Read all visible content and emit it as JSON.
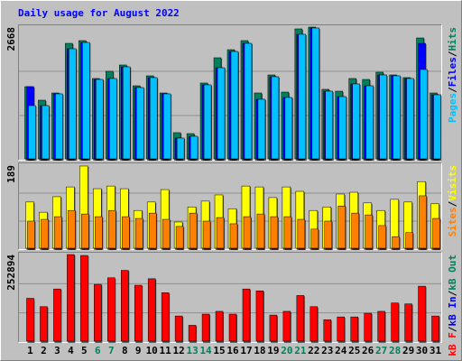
{
  "title": "Daily usage for August 2022",
  "legend_separator": "/",
  "highlight_categories": [
    "6",
    "7",
    "13",
    "14",
    "20",
    "21",
    "27",
    "28"
  ],
  "highlight_color": "#00805c",
  "chart_data": [
    {
      "type": "bar",
      "categories": [
        "1",
        "2",
        "3",
        "4",
        "5",
        "6",
        "7",
        "8",
        "9",
        "10",
        "11",
        "12",
        "13",
        "14",
        "15",
        "16",
        "17",
        "18",
        "19",
        "20",
        "21",
        "22",
        "23",
        "24",
        "25",
        "26",
        "27",
        "28",
        "29",
        "30",
        "31"
      ],
      "ylim": [
        0,
        2668
      ],
      "yticks": [
        2668
      ],
      "series": [
        {
          "name": "Hits",
          "color": "#00805c",
          "values": [
            1470,
            1198,
            1343,
            2341,
            2396,
            1634,
            1779,
            1906,
            1488,
            1688,
            1343,
            545,
            526,
            1543,
            2051,
            2214,
            2396,
            1343,
            1706,
            1361,
            2632,
            2668,
            1416,
            1379,
            1634,
            1615,
            1761,
            1706,
            1652,
            2450,
            1343
          ]
        },
        {
          "name": "Files",
          "color": "#0000ff",
          "values": [
            1470,
            1089,
            1325,
            2232,
            2359,
            1615,
            1634,
            1869,
            1452,
            1652,
            1325,
            436,
            472,
            1507,
            1851,
            2178,
            2341,
            1216,
            1670,
            1252,
            2523,
            2650,
            1379,
            1270,
            1525,
            1488,
            1706,
            1688,
            1634,
            2341,
            1307
          ]
        },
        {
          "name": "Pages",
          "color": "#00c0ff",
          "values": [
            1089,
            1089,
            1325,
            2232,
            2359,
            1615,
            1634,
            1869,
            1452,
            1652,
            1325,
            436,
            472,
            1507,
            1851,
            2178,
            2341,
            1216,
            1670,
            1252,
            2523,
            2650,
            1379,
            1270,
            1525,
            1488,
            1706,
            1688,
            1634,
            1815,
            1307
          ]
        }
      ]
    },
    {
      "type": "bar",
      "categories": [
        "1",
        "2",
        "3",
        "4",
        "5",
        "6",
        "7",
        "8",
        "9",
        "10",
        "11",
        "12",
        "13",
        "14",
        "15",
        "16",
        "17",
        "18",
        "19",
        "20",
        "21",
        "22",
        "23",
        "24",
        "25",
        "26",
        "27",
        "28",
        "29",
        "30",
        "31"
      ],
      "ylim": [
        0,
        189
      ],
      "yticks": [
        189
      ],
      "series": [
        {
          "name": "Visits",
          "color": "#ffff00",
          "values": [
            106,
            83,
            118,
            140,
            187,
            136,
            142,
            136,
            87,
            106,
            134,
            61,
            95,
            108,
            122,
            91,
            142,
            140,
            116,
            140,
            130,
            87,
            95,
            124,
            128,
            104,
            87,
            112,
            106,
            152,
            102
          ]
        },
        {
          "name": "Sites",
          "color": "#ff8000",
          "values": [
            63,
            67,
            73,
            87,
            79,
            73,
            87,
            73,
            69,
            81,
            67,
            51,
            81,
            63,
            71,
            57,
            73,
            79,
            73,
            73,
            67,
            45,
            63,
            97,
            81,
            77,
            53,
            28,
            37,
            120,
            69
          ]
        }
      ]
    },
    {
      "type": "bar",
      "categories": [
        "1",
        "2",
        "3",
        "4",
        "5",
        "6",
        "7",
        "8",
        "9",
        "10",
        "11",
        "12",
        "13",
        "14",
        "15",
        "16",
        "17",
        "18",
        "19",
        "20",
        "21",
        "22",
        "23",
        "24",
        "25",
        "26",
        "27",
        "28",
        "29",
        "30",
        "31"
      ],
      "ylim": [
        0,
        252894
      ],
      "yticks": [
        252894
      ],
      "series": [
        {
          "name": "kB F",
          "color": "#ff0000",
          "values": [
            126430,
            102220,
            153330,
            252894,
            250170,
            166780,
            185610,
            207130,
            164090,
            182920,
            142570,
            75320,
            48420,
            80700,
            88770,
            80700,
            153330,
            147950,
            78010,
            88770,
            134500,
            102220,
            64560,
            72630,
            72630,
            83390,
            88770,
            112980,
            110290,
            161400,
            75320
          ]
        }
      ],
      "extra_legend": [
        {
          "name": "kB In",
          "color": "#0000ff"
        },
        {
          "name": "kB Out",
          "color": "#00805c"
        }
      ]
    }
  ]
}
